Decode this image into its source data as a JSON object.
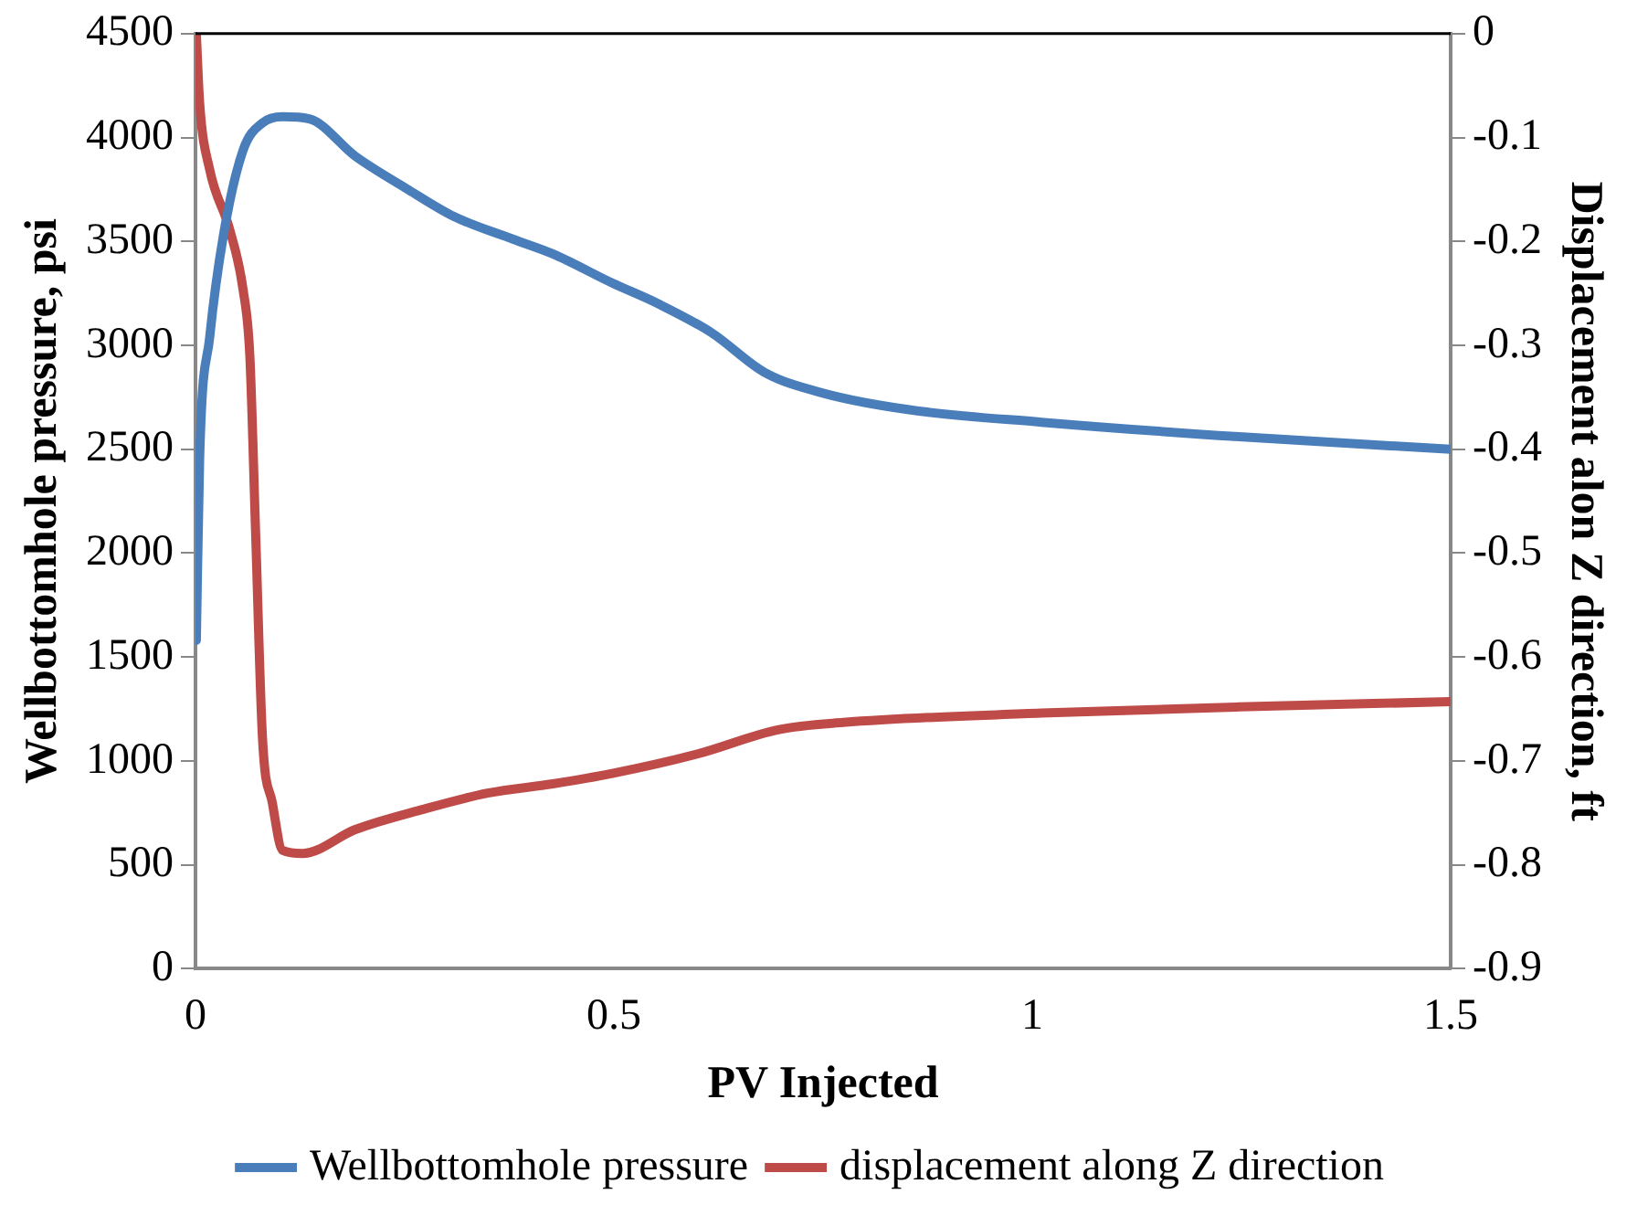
{
  "chart_data": {
    "type": "line",
    "xlabel": "PV Injected",
    "ylabel": "Wellbottomhole pressure, psi",
    "y2label": "Displacement alon Z direction, ft",
    "xlim": [
      0,
      1.5
    ],
    "xticks": [
      0,
      0.5,
      1,
      1.5
    ],
    "ylim": [
      0,
      4500
    ],
    "yticks": [
      0,
      500,
      1000,
      1500,
      2000,
      2500,
      3000,
      3500,
      4000,
      4500
    ],
    "y2lim": [
      -0.9,
      0
    ],
    "y2ticks": [
      -0.9,
      -0.8,
      -0.7,
      -0.6,
      -0.5,
      -0.4,
      -0.3,
      -0.2,
      -0.1,
      0
    ],
    "grid": false,
    "legend": "bottom",
    "marker": "none",
    "line_style": "solid",
    "series": [
      {
        "name": "Wellbottomhole pressure",
        "color": "#4a7ebb",
        "x": [
          0.001,
          0.005,
          0.017,
          0.033,
          0.057,
          0.08,
          0.104,
          0.136,
          0.191,
          0.254,
          0.309,
          0.38,
          0.427,
          0.498,
          0.553,
          0.617,
          0.68,
          0.75,
          0.853,
          1.011,
          1.247,
          1.5
        ],
        "values": [
          1580,
          2460,
          3040,
          3520,
          3940,
          4070,
          4100,
          4090,
          3910,
          3750,
          3620,
          3510,
          3440,
          3300,
          3200,
          3060,
          2870,
          2770,
          2690,
          2630,
          2560,
          2500
        ]
      },
      {
        "name": "displacement along Z direction",
        "color": "#be4b48",
        "axis": "y2",
        "x": [
          0.001,
          0.005,
          0.017,
          0.041,
          0.057,
          0.065,
          0.072,
          0.08,
          0.092,
          0.104,
          0.128,
          0.191,
          0.27,
          0.349,
          0.427,
          0.498,
          0.601,
          0.696,
          0.774,
          1.011,
          1.247,
          1.5
        ],
        "values": [
          0,
          -0.067,
          -0.131,
          -0.189,
          -0.247,
          -0.311,
          -0.484,
          -0.677,
          -0.741,
          -0.786,
          -0.789,
          -0.766,
          -0.747,
          -0.731,
          -0.722,
          -0.712,
          -0.693,
          -0.67,
          -0.663,
          -0.654,
          -0.648,
          -0.643
        ]
      }
    ]
  }
}
